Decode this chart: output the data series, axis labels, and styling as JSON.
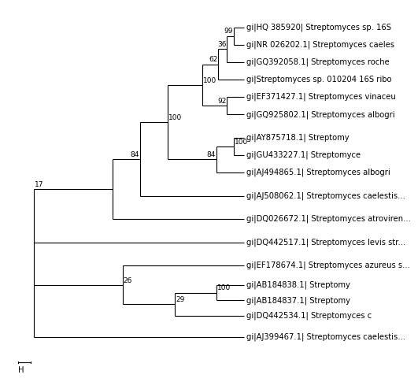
{
  "taxa": [
    "gi|HQ 385920| Streptomyces sp. 16S",
    "gi|NR 026202.1| Streptomyces caeles",
    "gi|GQ392058.1| Streptomyces roche",
    "gi|Streptomyces sp. 010204 16S ribo",
    "gi|EF371427.1| Streptomyces vinaceu",
    "gi|GQ925802.1| Streptomyces albogri",
    "gi|AY875718.1| Streptomy",
    "gi|GU433227.1| Streptomyce",
    "gi|AJ494865.1| Streptomyces albogri",
    "gi|AJ508062.1| Streptomyces caelestis...",
    "gi|DQ026672.1| Streptomyces atroviren...",
    "gi|DQ442517.1| Streptomyces levis str...",
    "gi|EF178674.1| Streptomyces azureus s...",
    "gi|AB184838.1| Streptomy",
    "gi|AB184837.1| Streptomy",
    "gi|DQ442534.1| Streptomyces c",
    "gi|AJ399467.1| Streptomyces caelestis..."
  ],
  "bootstrap": {
    "n01": 99,
    "n012": 36,
    "n0123": 62,
    "nA": 100,
    "n45": 92,
    "nAB": 100,
    "n67": 100,
    "n678": 84,
    "nAB9": 84,
    "root17": 17,
    "nBot": 26,
    "n1314": 100,
    "n131415": 29
  },
  "background": "#ffffff",
  "line_color": "#000000",
  "scale_bar_label": "H",
  "font_size": 7.2,
  "bs_font_size": 6.5
}
